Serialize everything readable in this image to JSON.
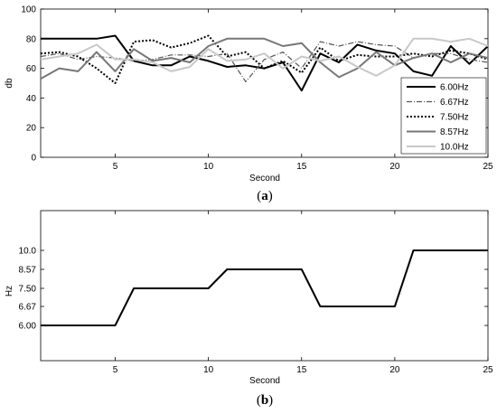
{
  "chart_data": [
    {
      "type": "line",
      "caption_pre": "(",
      "caption_bold": "a",
      "caption_post": ")",
      "xlabel": "Second",
      "ylabel": "db",
      "xlim": [
        1,
        25
      ],
      "ylim": [
        0,
        100
      ],
      "xticks": [
        5,
        10,
        15,
        20,
        25
      ],
      "yticks": [
        0,
        20,
        40,
        60,
        80,
        100
      ],
      "grid": false,
      "legend_position": "bottom-right",
      "x": [
        1,
        2,
        3,
        4,
        5,
        6,
        7,
        8,
        9,
        10,
        11,
        12,
        13,
        14,
        15,
        16,
        17,
        18,
        19,
        20,
        21,
        22,
        23,
        24,
        25
      ],
      "series": [
        {
          "name": "6.00Hz",
          "color": "#000000",
          "dash": "",
          "width": 2,
          "values": [
            80,
            80,
            80,
            80,
            82,
            65,
            62,
            62,
            68,
            65,
            61,
            62,
            60,
            64,
            45,
            70,
            64,
            76,
            72,
            70,
            58,
            55,
            75,
            63,
            75
          ]
        },
        {
          "name": "6.67Hz",
          "color": "#555555",
          "dash": "6,2,1,2",
          "width": 1.2,
          "values": [
            68,
            70,
            66,
            68,
            67,
            65,
            66,
            69,
            69,
            68,
            70,
            51,
            66,
            71,
            60,
            78,
            75,
            78,
            76,
            75,
            67,
            70,
            70,
            66,
            64
          ]
        },
        {
          "name": "7.50Hz",
          "color": "#000000",
          "dash": "2,2",
          "width": 2,
          "values": [
            70,
            71,
            68,
            60,
            50,
            78,
            79,
            74,
            77,
            82,
            68,
            71,
            60,
            65,
            57,
            74,
            65,
            69,
            68,
            68,
            70,
            68,
            72,
            70,
            66
          ]
        },
        {
          "name": "8.57Hz",
          "color": "#777777",
          "dash": "",
          "width": 2,
          "values": [
            53,
            60,
            58,
            71,
            58,
            73,
            65,
            67,
            64,
            75,
            80,
            80,
            80,
            75,
            77,
            64,
            54,
            60,
            71,
            62,
            67,
            70,
            64,
            70,
            67
          ]
        },
        {
          "name": "10.0Hz",
          "color": "#c8c8c8",
          "dash": "",
          "width": 2,
          "values": [
            66,
            68,
            70,
            76,
            66,
            66,
            64,
            58,
            61,
            73,
            65,
            66,
            70,
            60,
            68,
            65,
            68,
            61,
            55,
            62,
            80,
            80,
            78,
            80,
            75
          ]
        }
      ]
    },
    {
      "type": "line",
      "caption_pre": "(",
      "caption_bold": "b",
      "caption_post": ")",
      "xlabel": "Second",
      "ylabel": "Hz",
      "xlim": [
        1,
        25
      ],
      "ytick_labels": [
        "6.00",
        "6.67",
        "7.50",
        "8.57",
        "10.0"
      ],
      "grid": false,
      "x": [
        1,
        2,
        3,
        4,
        5,
        6,
        7,
        8,
        9,
        10,
        11,
        12,
        13,
        14,
        15,
        16,
        17,
        18,
        19,
        20,
        21,
        22,
        23,
        24,
        25
      ],
      "xticks": [
        5,
        10,
        15,
        20,
        25
      ],
      "series": [
        {
          "color": "#000000",
          "width": 2,
          "values": [
            "6.00",
            "6.00",
            "6.00",
            "6.00",
            "6.00",
            "7.50",
            "7.50",
            "7.50",
            "7.50",
            "7.50",
            "8.57",
            "8.57",
            "8.57",
            "8.57",
            "8.57",
            "6.67",
            "6.67",
            "6.67",
            "6.67",
            "6.67",
            "10.0",
            "10.0",
            "10.0",
            "10.0",
            "10.0"
          ]
        }
      ]
    }
  ]
}
